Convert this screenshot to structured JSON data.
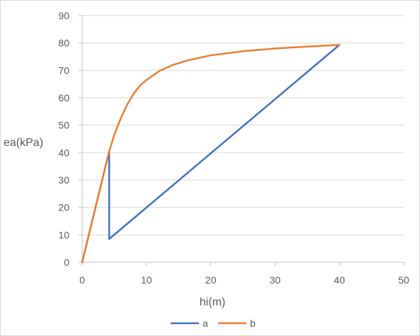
{
  "chart_data": {
    "type": "scatter",
    "title": "",
    "xlabel": "hi(m)",
    "ylabel": "ea(kPa)",
    "xlim": [
      0,
      50
    ],
    "ylim": [
      0,
      90
    ],
    "x_ticks": [
      0,
      10,
      20,
      30,
      40,
      50
    ],
    "y_ticks": [
      0,
      10,
      20,
      30,
      40,
      50,
      60,
      70,
      80,
      90
    ],
    "grid": "horizontal",
    "legend_position": "bottom",
    "series": [
      {
        "name": "a",
        "color": "#4472c4",
        "x": [
          0,
          4.2,
          4.2,
          40
        ],
        "y": [
          0,
          40.5,
          8.5,
          79.3
        ]
      },
      {
        "name": "b",
        "color": "#ed7d31",
        "x": [
          0,
          2,
          4.2,
          5,
          6,
          7,
          8,
          9,
          10,
          12,
          14,
          16,
          18,
          20,
          25,
          30,
          35,
          40
        ],
        "y": [
          0,
          19.3,
          40.5,
          46.5,
          52.5,
          57.5,
          61.5,
          64.5,
          66.5,
          69.8,
          71.9,
          73.4,
          74.5,
          75.5,
          77.0,
          78.0,
          78.7,
          79.3
        ]
      }
    ]
  }
}
